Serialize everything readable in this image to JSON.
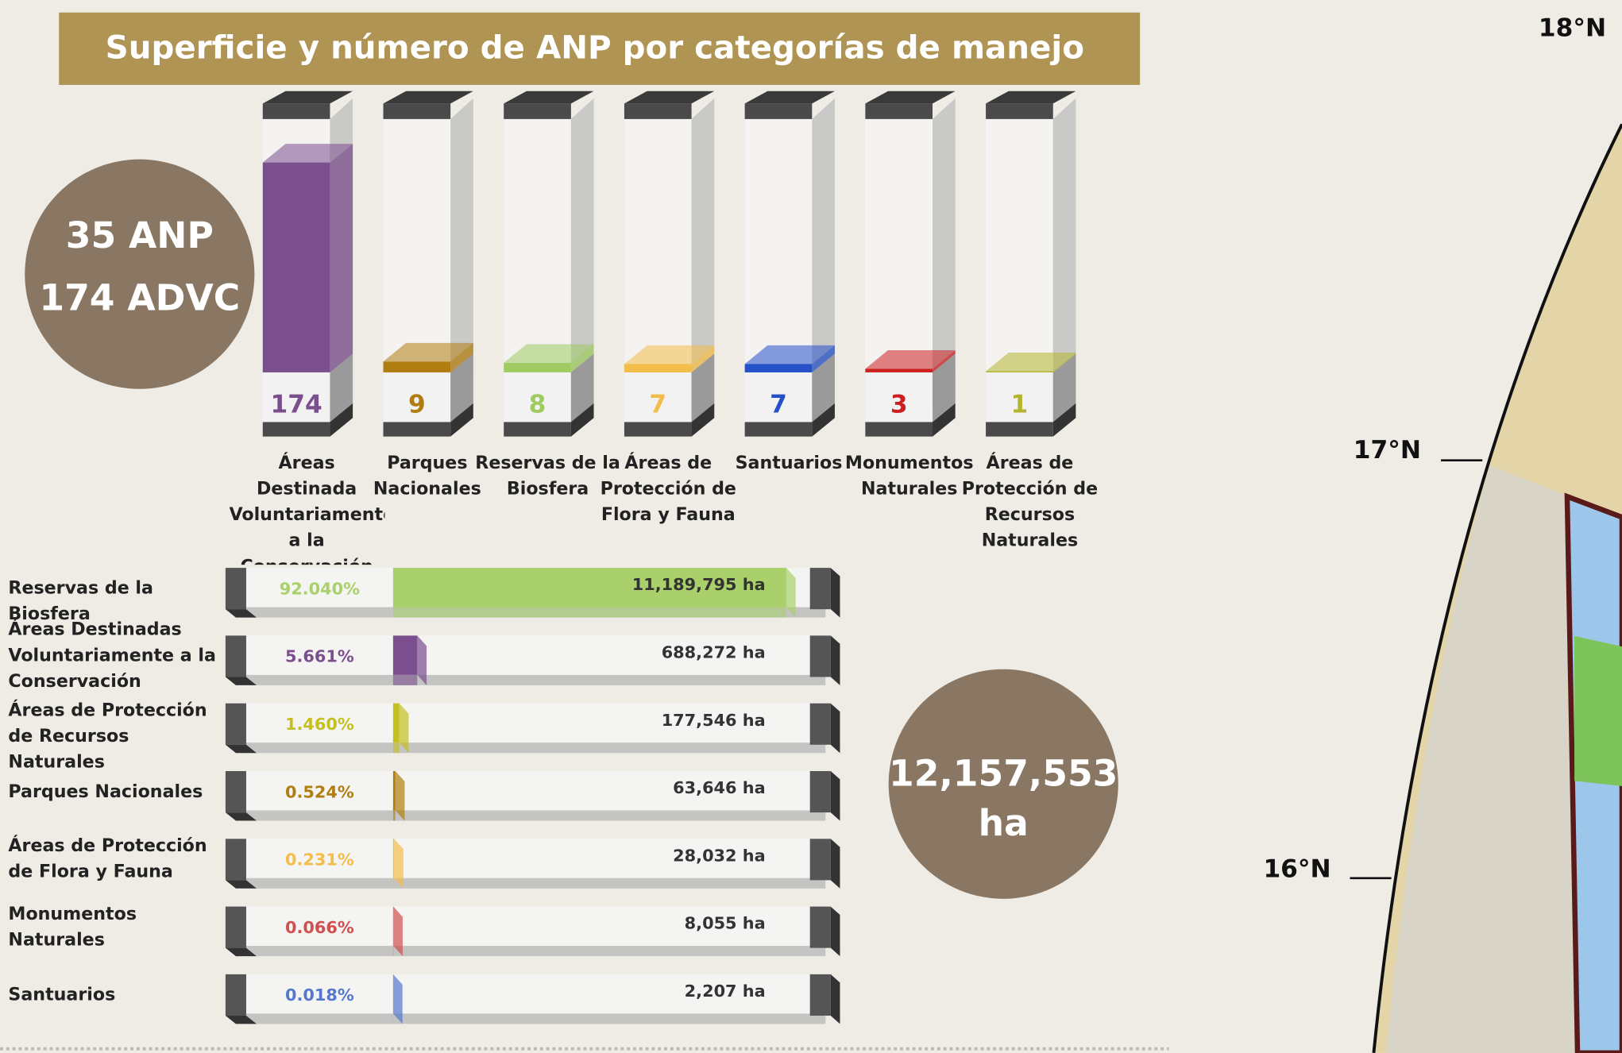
{
  "chart_data": [
    {
      "type": "bar",
      "title": "Superficie y número de ANP por categorías de manejo",
      "categories": [
        "Áreas Destinada Voluntariamente a la Conservación",
        "Parques Nacionales",
        "Reservas de la Biosfera",
        "Áreas de Protección de Flora y Fauna",
        "Santuarios",
        "Monumentos Naturales",
        "Áreas de Protección de Recursos Naturales"
      ],
      "values": [
        174,
        9,
        8,
        7,
        7,
        3,
        1
      ],
      "colors": [
        "#7b4f8e",
        "#b07d10",
        "#9fcb62",
        "#f3bd4a",
        "#2450c8",
        "#cc2020",
        "#b4b430"
      ],
      "ylim": [
        0,
        174
      ]
    },
    {
      "type": "hbar",
      "categories": [
        "Reservas de la Biosfera",
        "Áreas Destinadas Voluntariamente a la Conservación",
        "Áreas de Protección de Recursos Naturales",
        "Parques Nacionales",
        "Áreas de Protección de Flora y Fauna",
        "Monumentos Naturales",
        "Santuarios"
      ],
      "values": [
        11189795,
        688272,
        177546,
        63646,
        28032,
        8055,
        2207
      ],
      "value_labels": [
        "11,189,795 ha",
        "688,272 ha",
        "177,546 ha",
        "63,646 ha",
        "28,032 ha",
        "8,055 ha",
        "2,207 ha"
      ],
      "percentages": [
        92.04,
        5.661,
        1.46,
        0.524,
        0.231,
        0.066,
        0.018
      ],
      "percentage_labels": [
        "92.040%",
        "5.661%",
        "1.460%",
        "0.524%",
        "0.231%",
        "0.066%",
        "0.018%"
      ],
      "colors": [
        "#a9d06a",
        "#7b4f8e",
        "#c4c020",
        "#b07d10",
        "#f3bd4a",
        "#d05050",
        "#5577cc"
      ],
      "xlim": [
        0,
        100
      ]
    }
  ],
  "annotations": {
    "anp": "35 ANP",
    "advc": "174 ADVC",
    "total": "12,157,553",
    "total_unit": "ha"
  },
  "map": {
    "labels": [
      "18°N",
      "17°N",
      "16°N"
    ]
  }
}
